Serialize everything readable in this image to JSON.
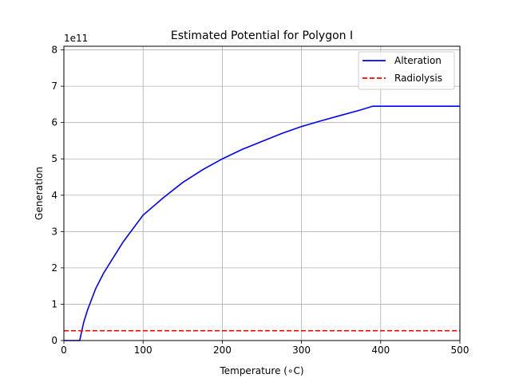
{
  "chart_data": {
    "type": "line",
    "title": "Estimated Potential for Polygon I",
    "xlabel": "Temperature (∘C)",
    "ylabel": "Generation",
    "y_offset_label": "1e11",
    "y_multiplier": 100000000000,
    "xlim": [
      0,
      500
    ],
    "ylim": [
      0,
      8.1
    ],
    "x_ticks": [
      0,
      100,
      200,
      300,
      400,
      500
    ],
    "y_ticks": [
      0,
      1,
      2,
      3,
      4,
      5,
      6,
      7,
      8
    ],
    "x_tick_labels": [
      "0",
      "100",
      "200",
      "300",
      "400",
      "500"
    ],
    "y_tick_labels": [
      "0",
      "1",
      "2",
      "3",
      "4",
      "5",
      "6",
      "7",
      "8"
    ],
    "grid": true,
    "legend_position": "top-right",
    "series": [
      {
        "name": "Alteration",
        "color": "#0000ff",
        "style": "solid",
        "x": [
          0,
          20,
          25,
          30,
          40,
          50,
          60,
          75,
          100,
          125,
          150,
          175,
          200,
          225,
          250,
          275,
          300,
          325,
          350,
          375,
          390,
          400,
          450,
          500
        ],
        "y": [
          0,
          0,
          0.5,
          0.85,
          1.42,
          1.85,
          2.2,
          2.72,
          3.45,
          3.92,
          4.35,
          4.7,
          5.0,
          5.26,
          5.48,
          5.7,
          5.89,
          6.05,
          6.2,
          6.35,
          6.45,
          6.45,
          6.45,
          6.45
        ]
      },
      {
        "name": "Radiolysis",
        "color": "#ff0000",
        "style": "dashed",
        "x": [
          0,
          500
        ],
        "y": [
          0.27,
          0.27
        ]
      }
    ]
  }
}
